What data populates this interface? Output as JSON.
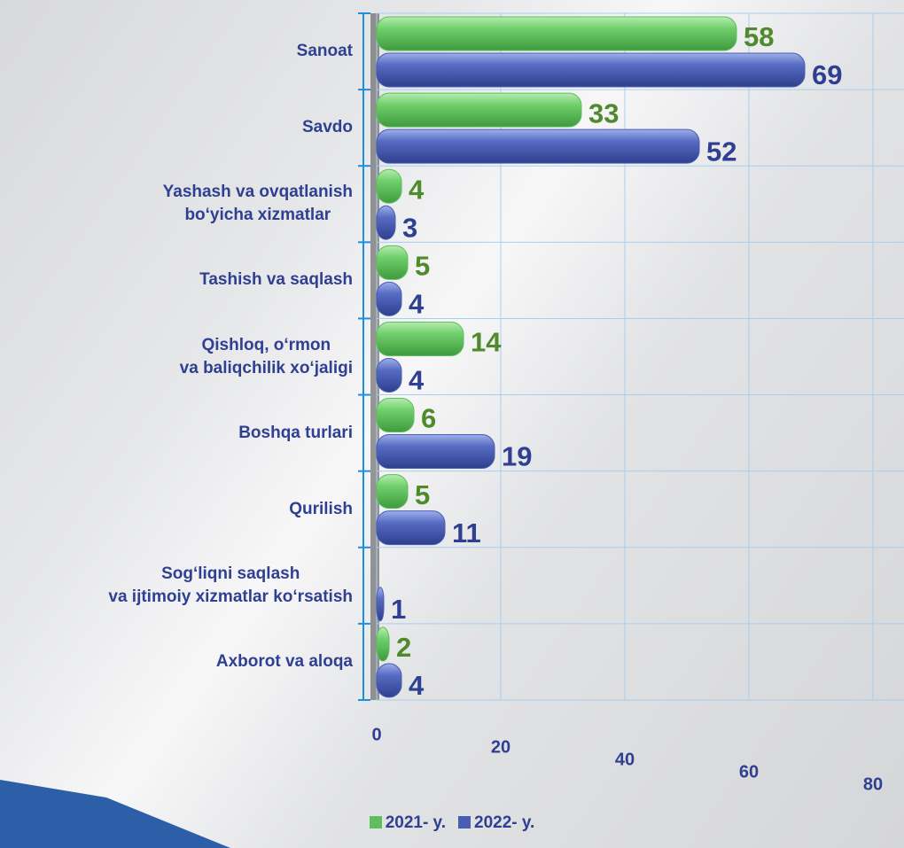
{
  "chart_data": {
    "type": "barh",
    "categories": [
      "Sanoat",
      "Savdo",
      "Yashash va ovqatlanish\nbo‘yicha xizmatlar",
      "Tashish va saqlash",
      "Qishloq, o‘rmon\nva baliqchilik xo‘jaligi",
      "Boshqa turlari",
      "Qurilish",
      "Sog‘liqni saqlash\nva ijtimoiy xizmatlar ko‘rsatish",
      "Axborot va aloqa"
    ],
    "series": [
      {
        "name": "2021- y.",
        "color": "#5cbf5c",
        "label_color": "#4f8a2c",
        "values": [
          58,
          33,
          4,
          5,
          14,
          6,
          5,
          null,
          2
        ]
      },
      {
        "name": "2022- y.",
        "color": "#4a5db5",
        "label_color": "#2f3f91",
        "values": [
          69,
          52,
          3,
          4,
          4,
          19,
          11,
          1,
          4
        ]
      }
    ],
    "xlim": [
      0,
      80
    ],
    "xticks": [
      0,
      20,
      40,
      60,
      80
    ],
    "grid": true,
    "legend": "bottom"
  }
}
